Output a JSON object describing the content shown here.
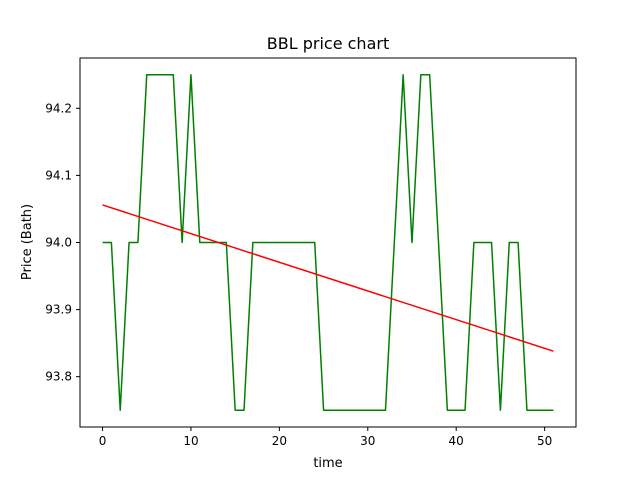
{
  "chart_data": {
    "type": "line",
    "title": "BBL price chart",
    "xlabel": "time",
    "ylabel": "Price (Bath)",
    "xlim": [
      -2.55,
      53.55
    ],
    "ylim": [
      93.725,
      94.275
    ],
    "xticks": [
      0,
      10,
      20,
      30,
      40,
      50
    ],
    "yticks": [
      93.8,
      93.9,
      94.0,
      94.1,
      94.2
    ],
    "grid": false,
    "legend": "none",
    "series": [
      {
        "color": "#008000",
        "x": [
          0,
          1,
          2,
          3,
          4,
          5,
          6,
          7,
          8,
          9,
          10,
          11,
          12,
          13,
          14,
          15,
          16,
          17,
          18,
          19,
          20,
          21,
          22,
          23,
          24,
          25,
          26,
          27,
          28,
          29,
          30,
          31,
          32,
          33,
          34,
          35,
          36,
          37,
          38,
          39,
          40,
          41,
          42,
          43,
          44,
          45,
          46,
          47,
          48,
          49,
          50,
          51
        ],
        "y": [
          94.0,
          94.0,
          93.75,
          94.0,
          94.0,
          94.25,
          94.25,
          94.25,
          94.25,
          94.0,
          94.25,
          94.0,
          94.0,
          94.0,
          94.0,
          93.75,
          93.75,
          94.0,
          94.0,
          94.0,
          94.0,
          94.0,
          94.0,
          94.0,
          94.0,
          93.75,
          93.75,
          93.75,
          93.75,
          93.75,
          93.75,
          93.75,
          93.75,
          94.0,
          94.25,
          94.0,
          94.25,
          94.25,
          94.0,
          93.75,
          93.75,
          93.75,
          94.0,
          94.0,
          94.0,
          93.75,
          94.0,
          94.0,
          93.75,
          93.75,
          93.75,
          93.75
        ]
      },
      {
        "color": "#ff0000",
        "x": [
          0,
          51
        ],
        "y": [
          94.056,
          93.838
        ]
      }
    ]
  }
}
